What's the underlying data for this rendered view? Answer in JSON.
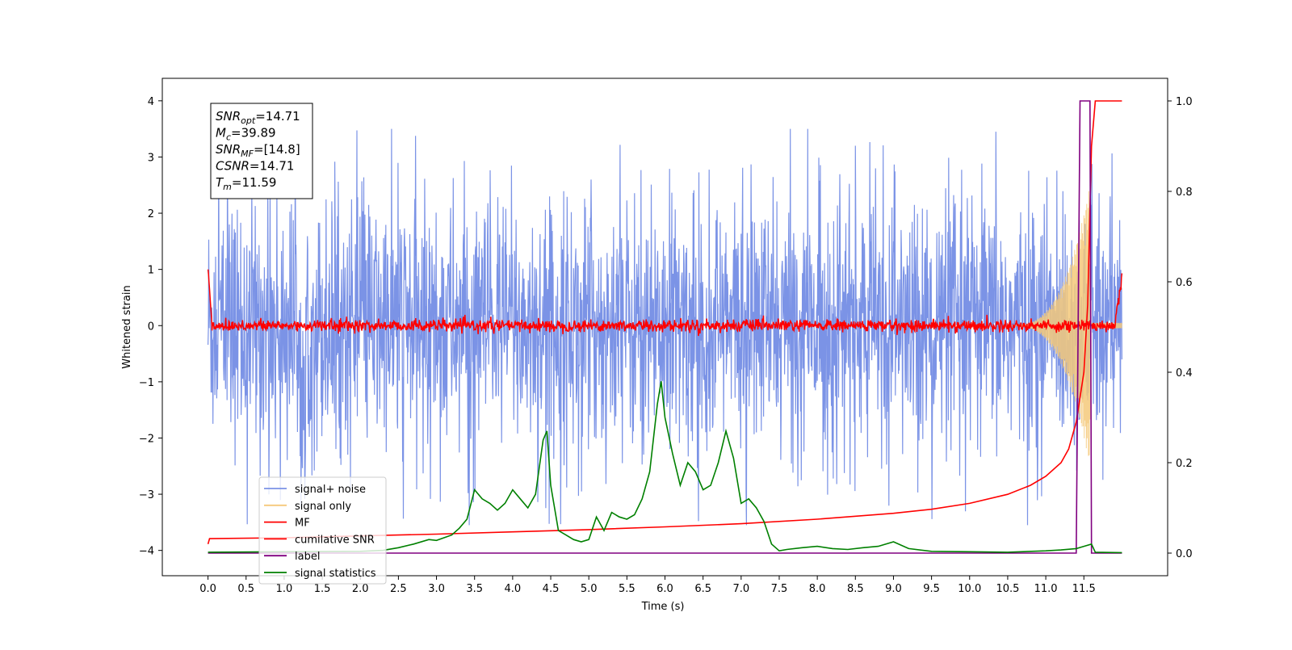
{
  "chart_data": {
    "type": "line",
    "xlabel": "Time (s)",
    "ylabel": "Whitened strain",
    "xlim": [
      -0.6,
      12.6
    ],
    "ylim": [
      -4.45,
      4.4
    ],
    "y2lim": [
      -0.05,
      1.05
    ],
    "xticks": [
      "0.0",
      "0.5",
      "1.0",
      "1.5",
      "2.0",
      "2.5",
      "3.0",
      "3.5",
      "4.0",
      "4.5",
      "5.0",
      "5.5",
      "6.0",
      "6.5",
      "7.0",
      "7.5",
      "8.0",
      "8.5",
      "9.0",
      "9.5",
      "10.0",
      "10.5",
      "11.0",
      "11.5"
    ],
    "yticks": [
      "4",
      "3",
      "2",
      "1",
      "0",
      "−1",
      "−2",
      "−3",
      "−4"
    ],
    "y2ticks": [
      "1.0",
      "0.8",
      "0.6",
      "0.4",
      "0.2",
      "0.0"
    ],
    "grid": false,
    "legend_location": "lower-left",
    "annotation": [
      {
        "main": "SNR",
        "sub": "opt",
        "rest": "=14.71"
      },
      {
        "main": "M",
        "sub": "c",
        "rest": "=39.89"
      },
      {
        "main": "SNR",
        "sub": "MF",
        "rest": "=[14.8]"
      },
      {
        "main": "CSNR",
        "sub": "",
        "rest": "=14.71"
      },
      {
        "main": "T",
        "sub": "m",
        "rest": "=11.59"
      }
    ],
    "series": [
      {
        "name": "signal+ noise",
        "color": "#7b93e6",
        "axis": "left",
        "style": "noise",
        "x_range": [
          0,
          12.0
        ],
        "envelope": [
          -2.0,
          2.0
        ],
        "peak_max": 3.5,
        "peak_min": -3.55
      },
      {
        "name": "signal only",
        "color": "#f5c97a",
        "axis": "left",
        "style": "chirp",
        "x_range": [
          10.5,
          12.0
        ],
        "amplitude_max": 2.5
      },
      {
        "name": "MF",
        "color": "#ff0000",
        "axis": "left",
        "style": "mf-noise",
        "x_range": [
          0,
          12.0
        ],
        "envelope": [
          -0.12,
          0.12
        ],
        "start_value": 1.0,
        "end_value": 0.93
      },
      {
        "name": "cumilative SNR",
        "color": "#ff0000",
        "axis": "right",
        "x": [
          0,
          0.02,
          1,
          2,
          3,
          4,
          5,
          6,
          7,
          8,
          9,
          9.5,
          10,
          10.5,
          10.8,
          11,
          11.2,
          11.3,
          11.4,
          11.5,
          11.55,
          11.6,
          11.65,
          12.0
        ],
        "y": [
          0.02,
          0.032,
          0.034,
          0.038,
          0.042,
          0.047,
          0.052,
          0.058,
          0.065,
          0.075,
          0.088,
          0.097,
          0.11,
          0.13,
          0.15,
          0.17,
          0.2,
          0.23,
          0.29,
          0.4,
          0.55,
          0.9,
          1.0,
          1.0
        ]
      },
      {
        "name": "label",
        "color": "#800080",
        "axis": "right",
        "x": [
          0,
          11.4,
          11.45,
          11.55,
          11.58,
          11.6,
          11.65,
          12.0
        ],
        "y": [
          0,
          0,
          1,
          1,
          1,
          0,
          0,
          0
        ]
      },
      {
        "name": "signal statistics",
        "color": "#008000",
        "axis": "right",
        "x": [
          0,
          1.0,
          2.0,
          2.3,
          2.5,
          2.7,
          2.9,
          3.0,
          3.2,
          3.3,
          3.4,
          3.5,
          3.6,
          3.7,
          3.8,
          3.9,
          4.0,
          4.1,
          4.2,
          4.3,
          4.4,
          4.45,
          4.5,
          4.6,
          4.7,
          4.8,
          4.9,
          5.0,
          5.1,
          5.2,
          5.3,
          5.4,
          5.5,
          5.6,
          5.7,
          5.8,
          5.9,
          5.95,
          6.0,
          6.1,
          6.2,
          6.3,
          6.4,
          6.5,
          6.6,
          6.7,
          6.8,
          6.9,
          7.0,
          7.1,
          7.2,
          7.3,
          7.4,
          7.5,
          7.6,
          7.8,
          8.0,
          8.2,
          8.4,
          8.6,
          8.8,
          9.0,
          9.2,
          9.5,
          10.0,
          10.5,
          11.0,
          11.2,
          11.4,
          11.5,
          11.6,
          11.65,
          12.0
        ],
        "y": [
          0.002,
          0.003,
          0.004,
          0.006,
          0.012,
          0.02,
          0.03,
          0.028,
          0.04,
          0.055,
          0.075,
          0.14,
          0.12,
          0.11,
          0.095,
          0.11,
          0.14,
          0.12,
          0.1,
          0.13,
          0.25,
          0.27,
          0.15,
          0.05,
          0.04,
          0.03,
          0.025,
          0.03,
          0.08,
          0.05,
          0.09,
          0.08,
          0.075,
          0.085,
          0.12,
          0.18,
          0.33,
          0.38,
          0.3,
          0.22,
          0.15,
          0.2,
          0.18,
          0.14,
          0.15,
          0.2,
          0.27,
          0.21,
          0.11,
          0.12,
          0.1,
          0.07,
          0.02,
          0.005,
          0.008,
          0.012,
          0.015,
          0.01,
          0.008,
          0.012,
          0.015,
          0.025,
          0.01,
          0.004,
          0.003,
          0.002,
          0.005,
          0.007,
          0.01,
          0.015,
          0.02,
          0.002,
          0.001
        ]
      }
    ]
  }
}
